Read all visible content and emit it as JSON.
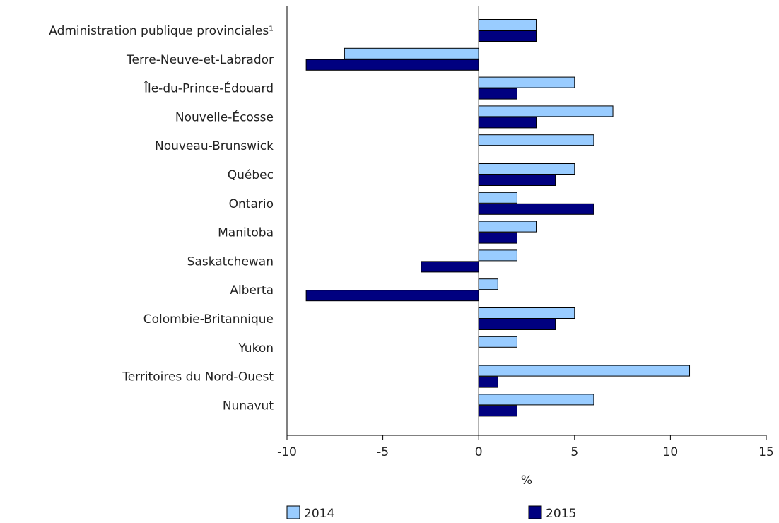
{
  "chart_data": {
    "type": "bar",
    "orientation": "horizontal",
    "categories": [
      "Administration publique provinciales¹",
      "Terre-Neuve-et-Labrador",
      "Île-du-Prince-Édouard",
      "Nouvelle-Écosse",
      "Nouveau-Brunswick",
      "Québec",
      "Ontario",
      "Manitoba",
      "Saskatchewan",
      "Alberta",
      "Colombie-Britannique",
      "Yukon",
      "Territoires du Nord-Ouest",
      "Nunavut"
    ],
    "series": [
      {
        "name": "2014",
        "color": "#99ccff",
        "values": [
          3,
          -7,
          5,
          7,
          6,
          5,
          2,
          3,
          2,
          1,
          5,
          2,
          11,
          6
        ]
      },
      {
        "name": "2015",
        "color": "#000080",
        "values": [
          3,
          -9,
          2,
          3,
          0,
          4,
          6,
          2,
          -3,
          -9,
          4,
          0,
          1,
          2
        ]
      }
    ],
    "xlabel": "%",
    "xlim": [
      -10,
      15
    ],
    "xticks": [
      -10,
      -5,
      0,
      5,
      10,
      15
    ],
    "grid": false,
    "legend_position": "bottom"
  }
}
